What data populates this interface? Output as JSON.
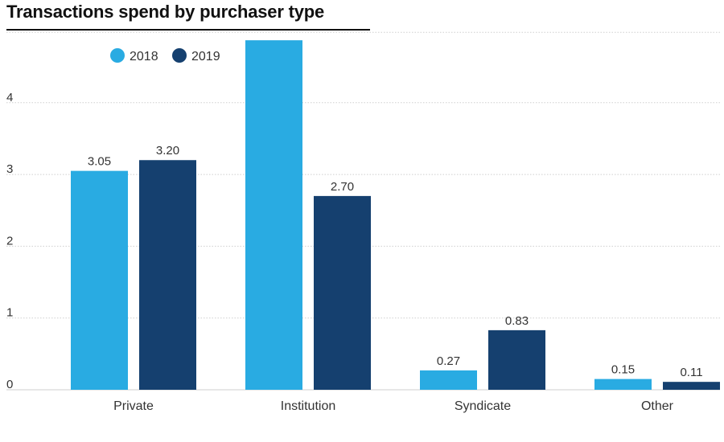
{
  "chart_data": {
    "type": "bar",
    "title": "Transactions spend by purchaser type",
    "categories": [
      "Private",
      "Institution",
      "Syndicate",
      "Other"
    ],
    "series": [
      {
        "name": "2018",
        "color": "#29abe2",
        "values": [
          3.05,
          4.87,
          0.27,
          0.15
        ],
        "labels": [
          "3.05",
          "",
          "0.27",
          "0.15"
        ]
      },
      {
        "name": "2019",
        "color": "#15406f",
        "values": [
          3.2,
          2.7,
          0.83,
          0.11
        ],
        "labels": [
          "3.20",
          "2.70",
          "0.83",
          "0.11"
        ]
      }
    ],
    "yticks": [
      "0",
      "1",
      "2",
      "3",
      "4"
    ],
    "ylim": [
      0,
      4.9
    ],
    "grid": true,
    "legend_position": "top-left"
  }
}
